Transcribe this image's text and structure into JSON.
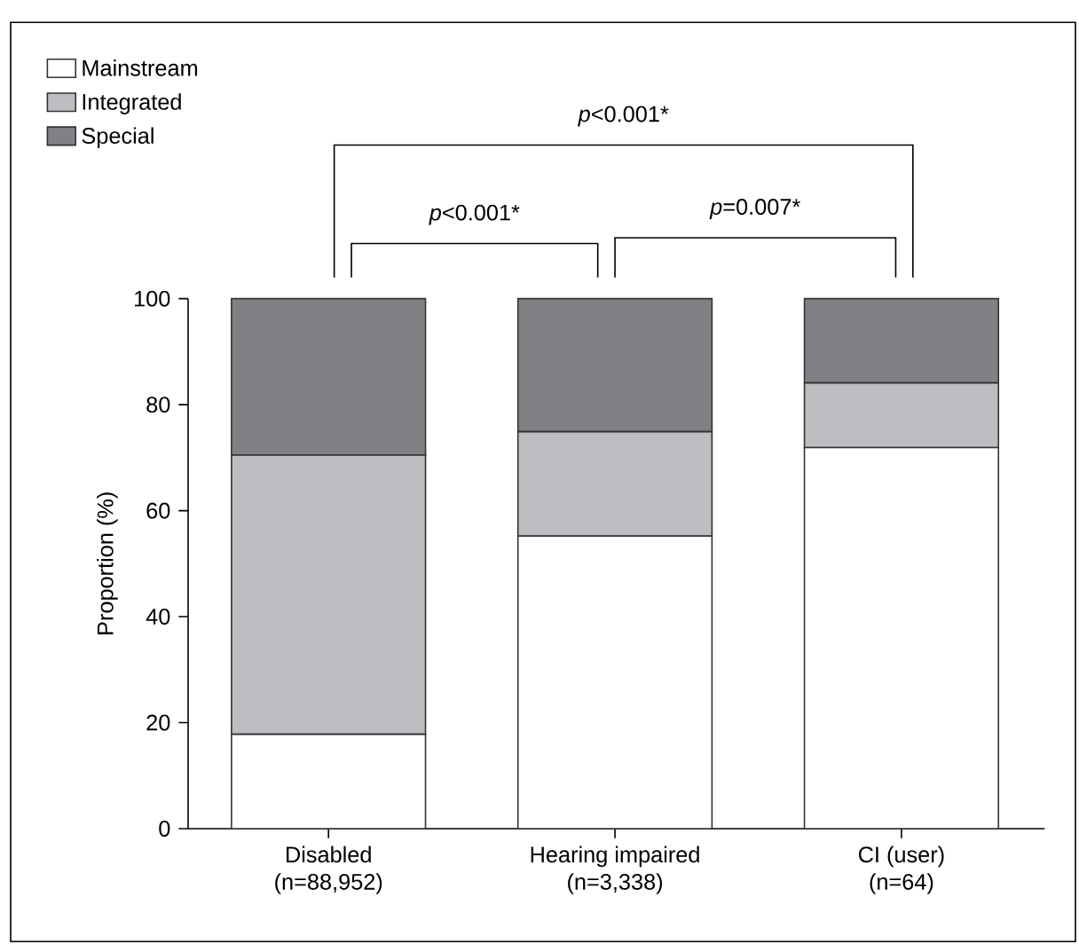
{
  "chart_data": {
    "type": "bar",
    "stacked": true,
    "ylabel": "Proportion (%)",
    "categories": [
      "Disabled (n=88,952)",
      "Hearing impaired (n=3,338)",
      "CI (user) (n=64)"
    ],
    "series": [
      {
        "name": "Mainstream",
        "color": "#ffffff",
        "values": [
          17.8,
          55.2,
          71.9
        ]
      },
      {
        "name": "Integrated",
        "color": "#bdbec1",
        "values": [
          52.7,
          19.7,
          12.2
        ]
      },
      {
        "name": "Special",
        "color": "#808185",
        "values": [
          29.5,
          25.1,
          15.9
        ]
      }
    ],
    "ylim": [
      0,
      100
    ],
    "yticks": [
      0,
      20,
      40,
      60,
      80,
      100
    ],
    "legend": "top left",
    "grid": false,
    "annotations": [
      "*p*<0.001*",
      "*p*<0.001*",
      "*p*=0.007*"
    ]
  }
}
